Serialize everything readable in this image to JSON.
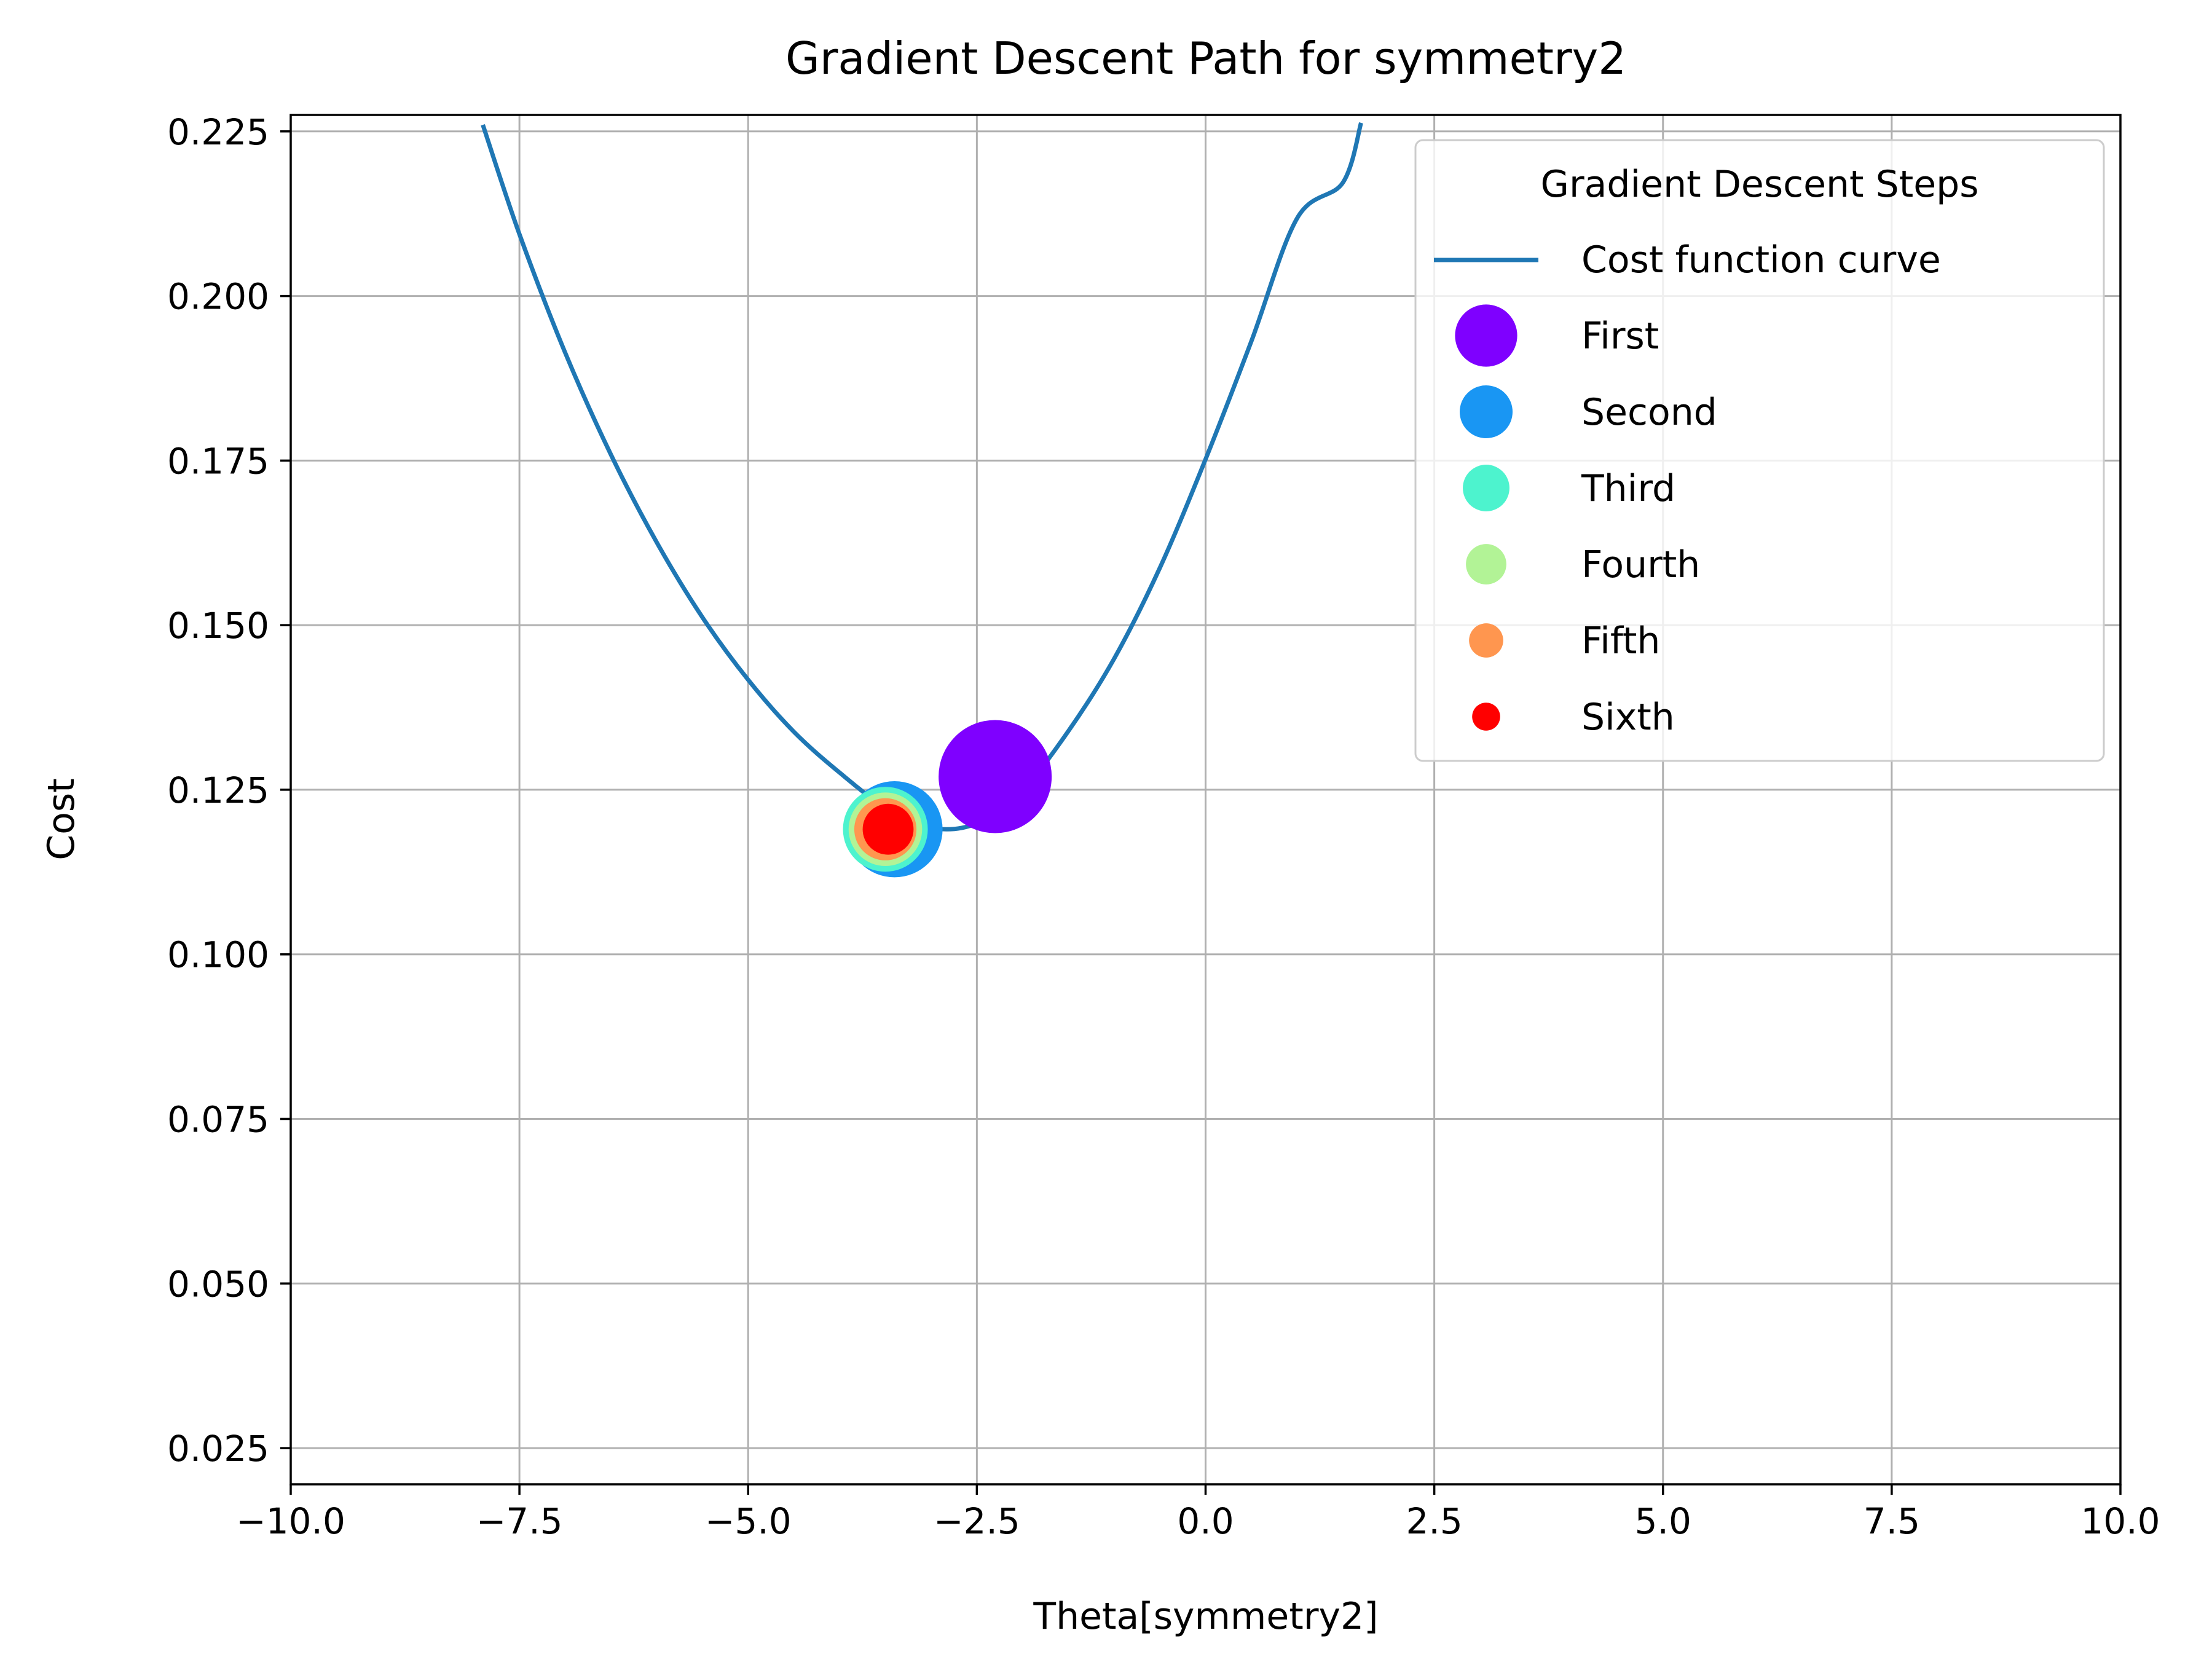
{
  "chart_data": {
    "type": "line",
    "title": "Gradient Descent Path for symmetry2",
    "xlabel": "Theta[symmetry2]",
    "ylabel": "Cost",
    "xlim": [
      -10,
      10
    ],
    "ylim": [
      0.0195,
      0.2275
    ],
    "grid": true,
    "legend": {
      "title": "Gradient Descent Steps",
      "placement": "top-right"
    },
    "x_ticks": [
      {
        "value": -10,
        "label": "−10.0"
      },
      {
        "value": -7.5,
        "label": "−7.5"
      },
      {
        "value": -5,
        "label": "−5.0"
      },
      {
        "value": -2.5,
        "label": "−2.5"
      },
      {
        "value": 0,
        "label": "0.0"
      },
      {
        "value": 2.5,
        "label": "2.5"
      },
      {
        "value": 5,
        "label": "5.0"
      },
      {
        "value": 7.5,
        "label": "7.5"
      },
      {
        "value": 10,
        "label": "10.0"
      }
    ],
    "y_ticks": [
      {
        "value": 0.025,
        "label": "0.025"
      },
      {
        "value": 0.05,
        "label": "0.050"
      },
      {
        "value": 0.075,
        "label": "0.075"
      },
      {
        "value": 0.1,
        "label": "0.100"
      },
      {
        "value": 0.125,
        "label": "0.125"
      },
      {
        "value": 0.15,
        "label": "0.150"
      },
      {
        "value": 0.175,
        "label": "0.175"
      },
      {
        "value": 0.2,
        "label": "0.200"
      },
      {
        "value": 0.225,
        "label": "0.225"
      }
    ],
    "curve": {
      "name": "Cost function curve",
      "color": "#1f77b4",
      "x": [
        -7.9,
        -7.5,
        -7.0,
        -6.5,
        -6.0,
        -5.5,
        -5.0,
        -4.5,
        -4.0,
        -3.5,
        -3.0,
        -2.5,
        -2.0,
        -1.5,
        -1.0,
        -0.5,
        0.0,
        0.5,
        1.0,
        1.5,
        1.7
      ],
      "y": [
        0.226,
        0.2094,
        0.1914,
        0.1759,
        0.1626,
        0.1512,
        0.1417,
        0.1338,
        0.1276,
        0.1223,
        0.1192,
        0.1199,
        0.125,
        0.1339,
        0.1449,
        0.1587,
        0.1752,
        0.1931,
        0.2118,
        0.2172,
        0.2263
      ]
    },
    "steps": [
      {
        "name": "First",
        "x": -2.3,
        "y": 0.127,
        "color": "#7f00ff",
        "legend_size": 10
      },
      {
        "name": "Second",
        "x": -3.4,
        "y": 0.119,
        "color": "#1996f3",
        "legend_size": 8.5
      },
      {
        "name": "Third",
        "x": -3.5,
        "y": 0.119,
        "color": "#4df3ce",
        "legend_size": 7.5
      },
      {
        "name": "Fourth",
        "x": -3.5,
        "y": 0.119,
        "color": "#b2f396",
        "legend_size": 6.5
      },
      {
        "name": "Fifth",
        "x": -3.5,
        "y": 0.119,
        "color": "#ff964f",
        "legend_size": 5.5
      },
      {
        "name": "Sixth",
        "x": -3.47,
        "y": 0.119,
        "color": "#ff0000",
        "legend_size": 4.5
      }
    ]
  }
}
